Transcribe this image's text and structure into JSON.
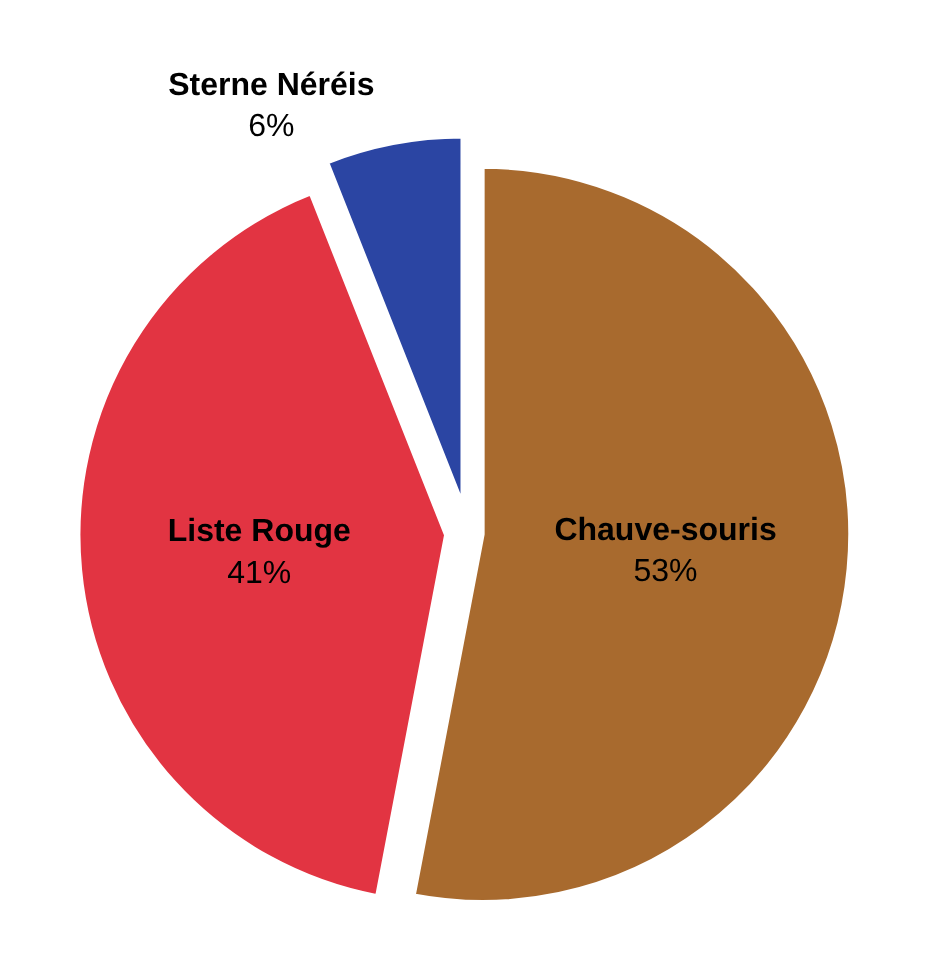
{
  "chart_data": {
    "type": "pie",
    "categories": [
      "Chauve-souris",
      "Liste Rouge",
      "Sterne Néréis"
    ],
    "values": [
      53,
      41,
      6
    ],
    "value_labels": [
      "53%",
      "41%",
      "6%"
    ],
    "colors": [
      "#a86a2e",
      "#e23442",
      "#2b45a3"
    ],
    "legend": false
  }
}
